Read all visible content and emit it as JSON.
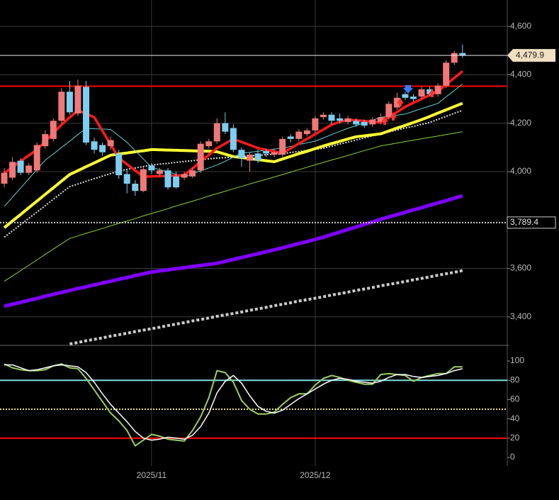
{
  "chart_data": [
    {
      "type": "candlestick",
      "categories": [
        null,
        null,
        null,
        null,
        null,
        null,
        null,
        null,
        null,
        null,
        null,
        null,
        null,
        null,
        null,
        null,
        null,
        null,
        "2025/11",
        null,
        null,
        null,
        null,
        null,
        null,
        null,
        null,
        null,
        null,
        null,
        null,
        null,
        null,
        null,
        null,
        null,
        null,
        null,
        "2025/12",
        null,
        null,
        null,
        null,
        null,
        null,
        null,
        null,
        null,
        null,
        null,
        null,
        null,
        null,
        null,
        null,
        null,
        null
      ],
      "open": [
        3950,
        3975,
        4045,
        3995,
        4005,
        4105,
        4135,
        4210,
        4330,
        4240,
        4350,
        4125,
        4110,
        4105,
        4075,
        3990,
        3950,
        3920,
        4025,
        3990,
        4005,
        3980,
        3975,
        3980,
        4005,
        4105,
        4125,
        4200,
        4180,
        4090,
        4045,
        4075,
        4085,
        4070,
        4070,
        4145,
        4135,
        4155,
        4170,
        4225,
        4235,
        4220,
        4205,
        4210,
        4205,
        4195,
        4205,
        4225,
        4265,
        4320,
        4310,
        4310,
        4340,
        4320,
        4355,
        4450,
        4490
      ],
      "high": [
        4015,
        4060,
        4055,
        4035,
        4120,
        4170,
        4220,
        4345,
        4375,
        4380,
        4375,
        4140,
        4120,
        4145,
        4090,
        4005,
        3965,
        4020,
        4035,
        4015,
        4015,
        4000,
        4000,
        4015,
        4125,
        4135,
        4220,
        4245,
        4195,
        4100,
        4080,
        4090,
        4095,
        4095,
        4145,
        4155,
        4175,
        4180,
        4230,
        4245,
        4245,
        4240,
        4230,
        4220,
        4215,
        4225,
        4240,
        4290,
        4325,
        4330,
        4320,
        4350,
        4350,
        4365,
        4460,
        4500,
        4525
      ],
      "low": [
        3935,
        3965,
        3985,
        3985,
        3995,
        4095,
        4125,
        4200,
        4235,
        4230,
        4110,
        4075,
        4065,
        4090,
        3970,
        3910,
        3900,
        3915,
        3990,
        3980,
        3925,
        3930,
        3965,
        3975,
        3995,
        4095,
        4115,
        4155,
        4080,
        4020,
        4000,
        4035,
        4060,
        4060,
        4060,
        4120,
        4125,
        4145,
        4160,
        4215,
        4195,
        4200,
        4195,
        4185,
        4180,
        4185,
        4195,
        4215,
        4255,
        4295,
        4290,
        4300,
        4310,
        4310,
        4345,
        4440,
        4470
      ],
      "close": [
        3995,
        4040,
        3995,
        4025,
        4110,
        4155,
        4210,
        4330,
        4245,
        4355,
        4120,
        4090,
        4080,
        4130,
        3985,
        3950,
        3920,
        4010,
        4005,
        4005,
        3935,
        3935,
        3990,
        4005,
        4115,
        4125,
        4200,
        4165,
        4090,
        4055,
        4070,
        4045,
        4075,
        4080,
        4135,
        4135,
        4165,
        4170,
        4220,
        4235,
        4210,
        4210,
        4220,
        4195,
        4190,
        4215,
        4225,
        4280,
        4305,
        4305,
        4300,
        4340,
        4320,
        4355,
        4450,
        4490,
        4479.9
      ],
      "up_color": "#f07878",
      "down_color": "#7ccdf0",
      "series": [
        {
          "color": "#7f00ff",
          "width": 5,
          "dash": null,
          "values": [
            3444,
            3452,
            3460,
            3468,
            3476,
            3485,
            3493,
            3501,
            3509,
            3517,
            3524,
            3532,
            3540,
            3547,
            3555,
            3562,
            3570,
            3578,
            3585,
            3590,
            3594,
            3599,
            3603,
            3608,
            3612,
            3617,
            3621,
            3629,
            3637,
            3645,
            3653,
            3661,
            3669,
            3677,
            3685,
            3694,
            3703,
            3711,
            3720,
            3729,
            3740,
            3750,
            3761,
            3771,
            3782,
            3792,
            3803,
            3813,
            3822,
            3832,
            3842,
            3851,
            3861,
            3871,
            3880,
            3890,
            3900
          ]
        },
        {
          "color": "#cccccc",
          "width": 4,
          "dash": "4 3",
          "values": [
            null,
            null,
            null,
            null,
            null,
            null,
            null,
            null,
            3288,
            3294,
            3301,
            3307,
            3313,
            3320,
            3326,
            3332,
            3339,
            3345,
            3351,
            3357,
            3364,
            3370,
            3376,
            3383,
            3389,
            3395,
            3402,
            3408,
            3414,
            3420,
            3427,
            3433,
            3439,
            3446,
            3452,
            3458,
            3465,
            3471,
            3477,
            3483,
            3490,
            3496,
            3502,
            3509,
            3515,
            3521,
            3528,
            3534,
            3540,
            3546,
            3553,
            3559,
            3565,
            3572,
            3578,
            3584,
            3591
          ]
        },
        {
          "color": "#8ccf3c",
          "width": 1,
          "dash": null,
          "values": [
            3547,
            3569,
            3591,
            3613,
            3635,
            3658,
            3680,
            3702,
            3724,
            3734,
            3745,
            3755,
            3765,
            3776,
            3786,
            3796,
            3806,
            3817,
            3827,
            3837,
            3847,
            3858,
            3868,
            3878,
            3888,
            3899,
            3909,
            3919,
            3929,
            3939,
            3949,
            3959,
            3968,
            3978,
            3988,
            3998,
            4008,
            4018,
            4028,
            4038,
            4048,
            4057,
            4067,
            4077,
            4087,
            4096,
            4106,
            4112,
            4118,
            4124,
            4130,
            4136,
            4141,
            4147,
            4153,
            4159,
            4165
          ]
        },
        {
          "color": "#dddddd",
          "width": 2,
          "dash": "2 2",
          "values": [
            3729,
            3755,
            3781,
            3807,
            3833,
            3859,
            3886,
            3912,
            3938,
            3949,
            3960,
            3971,
            3981,
            3992,
            4003,
            4009,
            4015,
            4021,
            4027,
            4031,
            4034,
            4038,
            4042,
            4045,
            4049,
            4053,
            4056,
            4058,
            4061,
            4063,
            4065,
            4067,
            4070,
            4072,
            4074,
            4079,
            4083,
            4088,
            4092,
            4097,
            4105,
            4114,
            4122,
            4131,
            4139,
            4148,
            4156,
            4164,
            4172,
            4180,
            4187,
            4195,
            4203,
            4216,
            4228,
            4241,
            4253
          ]
        },
        {
          "color": "#ffff33",
          "width": 4,
          "dash": null,
          "values": [
            3768,
            3796,
            3823,
            3851,
            3878,
            3906,
            3933,
            3961,
            3988,
            4004,
            4020,
            4036,
            4052,
            4068,
            4073,
            4077,
            4082,
            4086,
            4091,
            4090,
            4089,
            4088,
            4087,
            4086,
            4085,
            4084,
            4082,
            4072,
            4062,
            4058,
            4054,
            4049,
            4045,
            4041,
            4052,
            4063,
            4074,
            4084,
            4095,
            4106,
            4116,
            4125,
            4135,
            4144,
            4148,
            4152,
            4156,
            4168,
            4180,
            4191,
            4203,
            4215,
            4228,
            4242,
            4255,
            4269,
            4282
          ]
        },
        {
          "color": "#5fd3d3",
          "width": 1,
          "dash": null,
          "values": [
            3856,
            3894,
            3932,
            3971,
            4009,
            4047,
            4073,
            4100,
            4126,
            4153,
            4179,
            4177,
            4176,
            4174,
            4148,
            4121,
            4087,
            4052,
            4018,
            4008,
            3999,
            3989,
            3979,
            3991,
            4003,
            4015,
            4027,
            4043,
            4060,
            4076,
            4080,
            4084,
            4089,
            4093,
            4097,
            4104,
            4112,
            4119,
            4126,
            4139,
            4153,
            4166,
            4179,
            4190,
            4202,
            4213,
            4224,
            4229,
            4233,
            4238,
            4249,
            4260,
            4271,
            4282,
            4309,
            4335,
            4362
          ]
        },
        {
          "color": "#ff1a1a",
          "width": 3.5,
          "dash": null,
          "values": [
            3994,
            4018,
            4043,
            4067,
            4091,
            4125,
            4160,
            4194,
            4224,
            4253,
            4239,
            4224,
            4168,
            4112,
            4056,
            4030,
            4005,
            3979,
            3980,
            3981,
            3982,
            3984,
            3985,
            4013,
            4041,
            4069,
            4097,
            4116,
            4135,
            4122,
            4110,
            4097,
            4090,
            4083,
            4076,
            4096,
            4116,
            4135,
            4155,
            4174,
            4194,
            4205,
            4215,
            4212,
            4209,
            4206,
            4203,
            4225,
            4246,
            4268,
            4284,
            4300,
            4316,
            4332,
            4360,
            4387,
            4415
          ]
        }
      ],
      "hlines": [
        {
          "value": 4353,
          "color": "#ff0000"
        }
      ],
      "price_markers": [
        {
          "value": 4479.9,
          "label": "4,479.9",
          "style": "solid"
        },
        {
          "value": 3789.4,
          "label": "3,789.4",
          "style": "dotted"
        }
      ],
      "ylim": [
        3282,
        4709
      ],
      "yticks": [
        {
          "value": 3400,
          "label": "3,400"
        },
        {
          "value": 3600,
          "label": "3,600"
        },
        {
          "value": 4000,
          "label": "4,000"
        },
        {
          "value": 4200,
          "label": "4,200"
        },
        {
          "value": 4400,
          "label": "4,400"
        },
        {
          "value": 4600,
          "label": "4,600"
        }
      ],
      "grid": true
    },
    {
      "type": "line",
      "series": [
        {
          "color": "#9ccc65",
          "width": 2,
          "values": [
            97,
            93,
            91,
            90,
            90,
            91,
            95,
            97,
            93,
            92,
            82,
            70,
            58,
            46,
            38,
            28,
            12,
            18,
            24,
            22,
            19,
            18,
            17,
            28,
            42,
            62,
            90,
            88,
            78,
            59,
            50,
            45,
            45,
            47,
            55,
            62,
            66,
            66,
            75,
            82,
            85,
            83,
            80,
            78,
            76,
            76,
            86,
            87,
            86,
            85,
            79,
            83,
            85,
            87,
            87,
            94,
            94
          ]
        },
        {
          "color": "#ffffff",
          "width": 1.5,
          "values": [
            96,
            96,
            93,
            90,
            91,
            93,
            95,
            96,
            95,
            94,
            88,
            78,
            66,
            55,
            46,
            37,
            27,
            20,
            18,
            19,
            21,
            20,
            19,
            23,
            32,
            46,
            67,
            79,
            85,
            77,
            64,
            53,
            48,
            46,
            49,
            55,
            61,
            66,
            71,
            76,
            80,
            82,
            81,
            79,
            78,
            77,
            79,
            83,
            86,
            86,
            84,
            83,
            84,
            85,
            87,
            90,
            92
          ]
        }
      ],
      "levels": [
        {
          "value": 80,
          "color": "#7fdede",
          "dash": null
        },
        {
          "value": 50,
          "color": "#e8e08a",
          "dash": "2 2"
        },
        {
          "value": 20,
          "color": "#ff0000",
          "dash": null
        }
      ],
      "ylim": [
        -8.8,
        116.2
      ],
      "yticks": [
        0,
        20,
        40,
        60,
        80,
        100
      ]
    }
  ]
}
